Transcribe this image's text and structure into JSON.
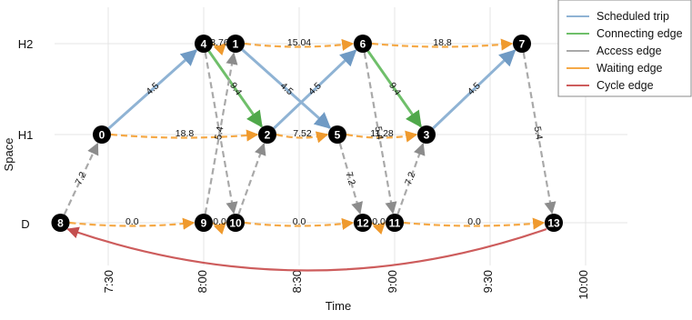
{
  "axes": {
    "y_title": "Space",
    "x_title": "Time",
    "y_ticks": [
      "H2",
      "H1",
      "D"
    ],
    "x_ticks": [
      "7:30",
      "8:00",
      "8:30",
      "9:00",
      "9:30",
      "10:00"
    ]
  },
  "legend": [
    {
      "label": "Scheduled trip",
      "color": "#8fb3d4"
    },
    {
      "label": "Connecting edge",
      "color": "#6fbf6a"
    },
    {
      "label": "Access edge",
      "color": "#a9a9a9"
    },
    {
      "label": "Waiting edge",
      "color": "#f5a947"
    },
    {
      "label": "Cycle edge",
      "color": "#cd5c5c"
    }
  ],
  "nodes": [
    {
      "id": "0",
      "time": "7:28",
      "space": "H1"
    },
    {
      "id": "1",
      "time": "8:10",
      "space": "H2"
    },
    {
      "id": "2",
      "time": "8:20",
      "space": "H1"
    },
    {
      "id": "3",
      "time": "9:10",
      "space": "H1"
    },
    {
      "id": "4",
      "time": "8:00",
      "space": "H2"
    },
    {
      "id": "5",
      "time": "8:42",
      "space": "H1"
    },
    {
      "id": "6",
      "time": "8:50",
      "space": "H2"
    },
    {
      "id": "7",
      "time": "9:40",
      "space": "H2"
    },
    {
      "id": "8",
      "time": "7:15",
      "space": "D"
    },
    {
      "id": "9",
      "time": "8:00",
      "space": "D"
    },
    {
      "id": "10",
      "time": "8:10",
      "space": "D"
    },
    {
      "id": "11",
      "time": "9:00",
      "space": "D"
    },
    {
      "id": "12",
      "time": "8:50",
      "space": "D"
    },
    {
      "id": "13",
      "time": "9:50",
      "space": "D"
    }
  ],
  "edges": [
    {
      "from": "0",
      "to": "4",
      "type": "scheduled",
      "label": "4.5"
    },
    {
      "from": "1",
      "to": "5",
      "type": "scheduled",
      "label": "4.5"
    },
    {
      "from": "2",
      "to": "6",
      "type": "scheduled",
      "label": "4.5"
    },
    {
      "from": "3",
      "to": "7",
      "type": "scheduled",
      "label": "4.5"
    },
    {
      "from": "4",
      "to": "2",
      "type": "connecting",
      "label": "9.4"
    },
    {
      "from": "6",
      "to": "3",
      "type": "connecting",
      "label": "9.4"
    },
    {
      "from": "8",
      "to": "0",
      "type": "access",
      "label": "7.2"
    },
    {
      "from": "9",
      "to": "1",
      "type": "access",
      "label": "5.4"
    },
    {
      "from": "4",
      "to": "10",
      "type": "access",
      "label": ""
    },
    {
      "from": "10",
      "to": "2",
      "type": "access",
      "label": ""
    },
    {
      "from": "5",
      "to": "12",
      "type": "access",
      "label": "7.2"
    },
    {
      "from": "6",
      "to": "11",
      "type": "access",
      "label": "5.4"
    },
    {
      "from": "11",
      "to": "3",
      "type": "access",
      "label": "7.2"
    },
    {
      "from": "7",
      "to": "13",
      "type": "access",
      "label": "5.4"
    },
    {
      "from": "4",
      "to": "1",
      "type": "waiting",
      "label": "3.76"
    },
    {
      "from": "1",
      "to": "6",
      "type": "waiting",
      "label": "15.04"
    },
    {
      "from": "6",
      "to": "7",
      "type": "waiting",
      "label": "18.8"
    },
    {
      "from": "0",
      "to": "2",
      "type": "waiting",
      "label": "18.8"
    },
    {
      "from": "2",
      "to": "5",
      "type": "waiting",
      "label": "7.52"
    },
    {
      "from": "5",
      "to": "3",
      "type": "waiting",
      "label": "11.28"
    },
    {
      "from": "8",
      "to": "9",
      "type": "waiting",
      "label": "0.0"
    },
    {
      "from": "9",
      "to": "10",
      "type": "waiting",
      "label": "0.0"
    },
    {
      "from": "10",
      "to": "12",
      "type": "waiting",
      "label": "0.0"
    },
    {
      "from": "12",
      "to": "11",
      "type": "waiting",
      "label": "0.0"
    },
    {
      "from": "11",
      "to": "13",
      "type": "waiting",
      "label": "0.0"
    },
    {
      "from": "13",
      "to": "8",
      "type": "cycle",
      "label": ""
    }
  ]
}
